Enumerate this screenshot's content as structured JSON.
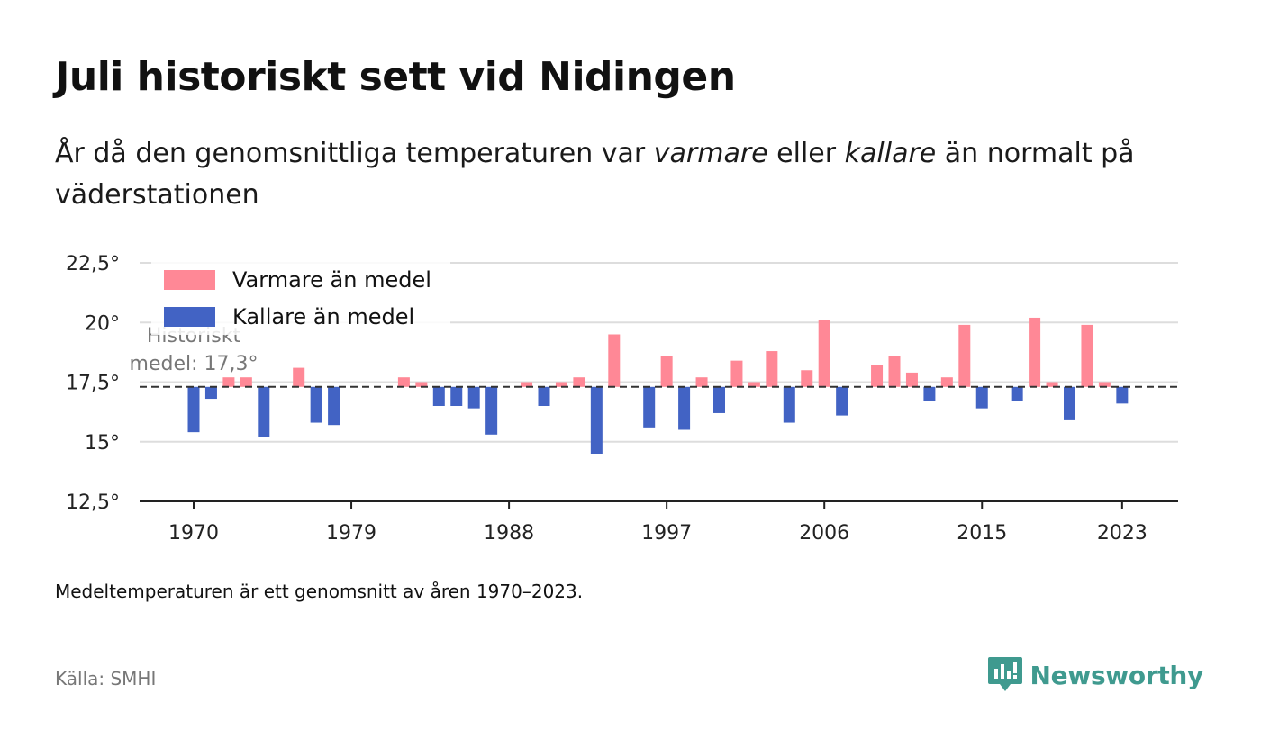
{
  "title": "Juli historiskt sett vid Nidingen",
  "subtitle": {
    "part1": "År då den genomsnittliga temperaturen var ",
    "warm_word": "varmare",
    "part2": " eller ",
    "cold_word": "kallare",
    "part3": " än normalt på väderstationen"
  },
  "note": "Medeltemperaturen är ett genomsnitt av åren 1970–2023.",
  "source": "Källa: SMHI",
  "brand": {
    "name": "Newsworthy",
    "icon": "newsworthy-logo-icon",
    "color": "#3f9a8f"
  },
  "chart_data": {
    "type": "bar",
    "baseline": 17.3,
    "baseline_label": [
      "Historiskt",
      "medel: 17,3°"
    ],
    "ylim": [
      12.5,
      22.5
    ],
    "yticks": [
      12.5,
      15,
      17.5,
      20,
      22.5
    ],
    "ytick_labels": [
      "12,5°",
      "15°",
      "17,5°",
      "20°",
      "22,5°"
    ],
    "xticks": [
      1970,
      1979,
      1988,
      1997,
      2006,
      2015,
      2023
    ],
    "xtick_labels": [
      "1970",
      "1979",
      "1988",
      "1997",
      "2006",
      "2015",
      "2023"
    ],
    "grid": true,
    "legend_position": "top-left",
    "series": [
      {
        "name": "Varmare än medel",
        "color": "#ff8896"
      },
      {
        "name": "Kallare än medel",
        "color": "#4263c4"
      }
    ],
    "x": [
      1970,
      1971,
      1972,
      1973,
      1974,
      1975,
      1976,
      1977,
      1978,
      1979,
      1980,
      1981,
      1982,
      1983,
      1984,
      1985,
      1986,
      1987,
      1988,
      1989,
      1990,
      1991,
      1992,
      1993,
      1994,
      1995,
      1996,
      1997,
      1998,
      1999,
      2000,
      2001,
      2002,
      2003,
      2004,
      2005,
      2006,
      2007,
      2008,
      2009,
      2010,
      2011,
      2012,
      2013,
      2014,
      2015,
      2016,
      2017,
      2018,
      2019,
      2020,
      2021,
      2022,
      2023
    ],
    "values": [
      15.4,
      16.8,
      17.7,
      17.7,
      15.2,
      17.3,
      18.1,
      15.8,
      15.7,
      17.3,
      17.3,
      17.3,
      17.7,
      17.5,
      16.5,
      16.5,
      16.4,
      15.3,
      17.3,
      17.5,
      16.5,
      17.5,
      17.7,
      14.5,
      19.5,
      17.3,
      15.6,
      18.6,
      15.5,
      17.7,
      16.2,
      18.4,
      17.5,
      18.8,
      15.8,
      18.0,
      20.1,
      16.1,
      17.3,
      18.2,
      18.6,
      17.9,
      16.7,
      17.7,
      19.9,
      16.4,
      17.3,
      16.7,
      20.2,
      17.5,
      15.9,
      19.9,
      17.5,
      16.6
    ]
  }
}
